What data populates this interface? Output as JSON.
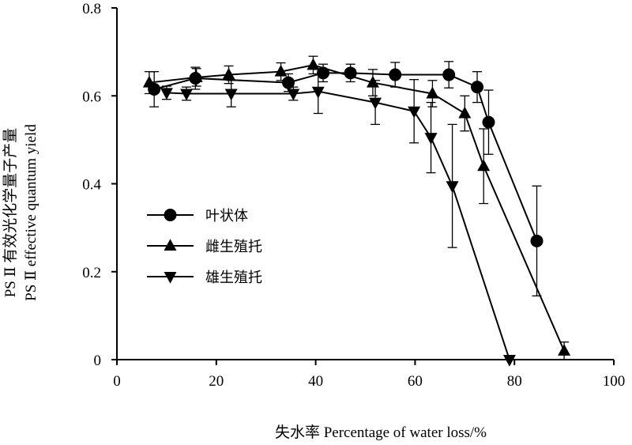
{
  "chart_data": {
    "type": "line",
    "xlabel": "失水率 Percentage of water loss/%",
    "ylabel_lines": [
      "PS Ⅱ 有效光化学量子产量",
      "PS Ⅱ effective quantum yield"
    ],
    "xlim": [
      0,
      100
    ],
    "ylim": [
      0,
      0.8
    ],
    "xticks": [
      0,
      20,
      40,
      60,
      80,
      100
    ],
    "yticks": [
      0,
      0.2,
      0.4,
      0.6,
      0.8
    ],
    "xtick_labels": [
      "0",
      "20",
      "40",
      "60",
      "80",
      "100"
    ],
    "ytick_labels": [
      "0",
      "0.2",
      "0.4",
      "0.6",
      "0.8"
    ],
    "grid": false,
    "legend_position": "left",
    "series": [
      {
        "name": "叶状体",
        "marker": "circle",
        "points": [
          {
            "x": 7.5,
            "y": 0.615,
            "err": 0.04
          },
          {
            "x": 15.8,
            "y": 0.64,
            "err": 0.025
          },
          {
            "x": 34.5,
            "y": 0.63,
            "err": 0.02
          },
          {
            "x": 41.5,
            "y": 0.652,
            "err": 0.02
          },
          {
            "x": 47.0,
            "y": 0.652,
            "err": 0.02
          },
          {
            "x": 56.0,
            "y": 0.648,
            "err": 0.028
          },
          {
            "x": 66.8,
            "y": 0.648,
            "err": 0.03
          },
          {
            "x": 72.5,
            "y": 0.62,
            "err": 0.035
          },
          {
            "x": 74.8,
            "y": 0.54,
            "err": 0.073
          },
          {
            "x": 84.5,
            "y": 0.27,
            "err": 0.125
          }
        ]
      },
      {
        "name": "雌生殖托",
        "marker": "triangle-up",
        "points": [
          {
            "x": 6.5,
            "y": 0.63,
            "err": 0.025
          },
          {
            "x": 16.0,
            "y": 0.642,
            "err": 0.02
          },
          {
            "x": 22.5,
            "y": 0.648,
            "err": 0.02
          },
          {
            "x": 33.0,
            "y": 0.655,
            "err": 0.02
          },
          {
            "x": 39.5,
            "y": 0.67,
            "err": 0.02
          },
          {
            "x": 51.5,
            "y": 0.63,
            "err": 0.03
          },
          {
            "x": 63.5,
            "y": 0.605,
            "err": 0.03
          },
          {
            "x": 70.0,
            "y": 0.56,
            "err": 0.04
          },
          {
            "x": 73.8,
            "y": 0.44,
            "err": 0.085
          },
          {
            "x": 90.0,
            "y": 0.02,
            "err": 0.02
          }
        ]
      },
      {
        "name": "雄生殖托",
        "marker": "triangle-down",
        "points": [
          {
            "x": 10.0,
            "y": 0.607,
            "err": 0.015
          },
          {
            "x": 14.0,
            "y": 0.605,
            "err": 0.015
          },
          {
            "x": 23.0,
            "y": 0.605,
            "err": 0.03
          },
          {
            "x": 35.5,
            "y": 0.605,
            "err": 0.015
          },
          {
            "x": 40.5,
            "y": 0.61,
            "err": 0.05
          },
          {
            "x": 52.0,
            "y": 0.585,
            "err": 0.05
          },
          {
            "x": 59.8,
            "y": 0.565,
            "err": 0.072
          },
          {
            "x": 63.2,
            "y": 0.505,
            "err": 0.08
          },
          {
            "x": 67.5,
            "y": 0.395,
            "err": 0.14
          },
          {
            "x": 79.0,
            "y": 0.0,
            "err": 0.0
          }
        ]
      }
    ]
  }
}
